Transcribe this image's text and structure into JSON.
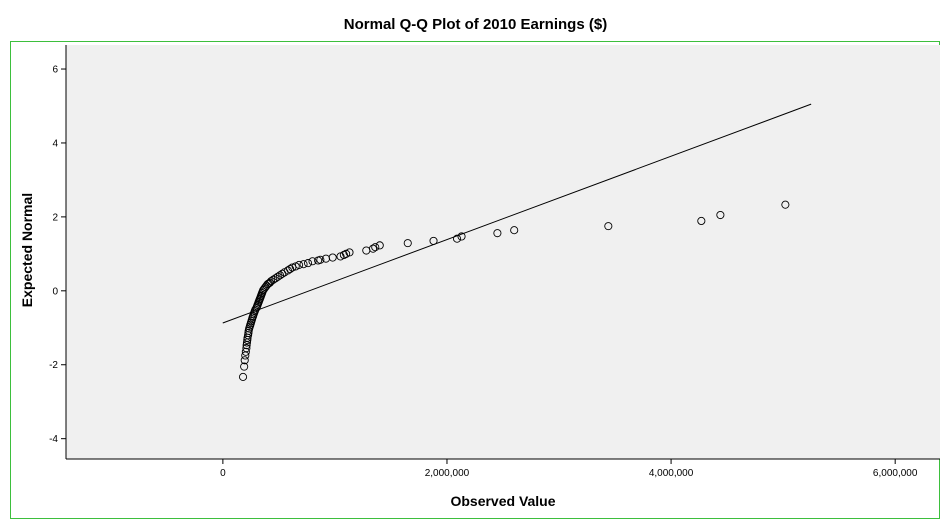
{
  "chart_data": {
    "type": "scatter",
    "title": "Normal Q-Q Plot of 2010 Earnings ($)",
    "xlabel": "Observed Value",
    "ylabel": "Expected Normal",
    "xlim": [
      -1400000,
      6400000
    ],
    "ylim": [
      -4.55,
      6.65
    ],
    "x_ticks": [
      0,
      2000000,
      4000000,
      6000000
    ],
    "x_tick_labels": [
      "0",
      "2,000,000",
      "4,000,000",
      "6,000,000"
    ],
    "y_ticks": [
      -4,
      -2,
      0,
      2,
      4,
      6
    ],
    "y_tick_labels": [
      "-4",
      "-2",
      "0",
      "2",
      "4",
      "6"
    ],
    "grid": false,
    "plot_background": "#f0f0f0",
    "reference_line": {
      "x": [
        -1000,
        5250000
      ],
      "y": [
        -0.87,
        5.05
      ]
    },
    "points": {
      "x": [
        180000,
        190000,
        195000,
        200000,
        205000,
        210000,
        212000,
        215000,
        218000,
        220000,
        225000,
        228000,
        230000,
        235000,
        240000,
        245000,
        250000,
        255000,
        260000,
        265000,
        270000,
        275000,
        280000,
        285000,
        290000,
        300000,
        305000,
        310000,
        315000,
        320000,
        325000,
        330000,
        335000,
        340000,
        345000,
        350000,
        355000,
        360000,
        370000,
        380000,
        390000,
        400000,
        410000,
        420000,
        430000,
        450000,
        470000,
        490000,
        510000,
        530000,
        550000,
        580000,
        600000,
        620000,
        650000,
        680000,
        720000,
        760000,
        800000,
        850000,
        870000,
        920000,
        980000,
        1050000,
        1080000,
        1100000,
        1130000,
        1280000,
        1340000,
        1360000,
        1400000,
        1650000,
        1880000,
        2090000,
        2130000,
        2450000,
        2600000,
        3440000,
        4270000,
        4440000,
        5020000
      ],
      "y": [
        -2.33,
        -2.05,
        -1.88,
        -1.75,
        -1.65,
        -1.55,
        -1.47,
        -1.4,
        -1.33,
        -1.27,
        -1.2,
        -1.14,
        -1.08,
        -1.02,
        -0.97,
        -0.92,
        -0.87,
        -0.82,
        -0.77,
        -0.72,
        -0.68,
        -0.63,
        -0.59,
        -0.55,
        -0.51,
        -0.46,
        -0.42,
        -0.38,
        -0.34,
        -0.3,
        -0.26,
        -0.22,
        -0.18,
        -0.14,
        -0.1,
        -0.06,
        -0.02,
        0.02,
        0.06,
        0.1,
        0.14,
        0.18,
        0.2,
        0.22,
        0.26,
        0.3,
        0.34,
        0.38,
        0.42,
        0.46,
        0.5,
        0.55,
        0.59,
        0.63,
        0.66,
        0.7,
        0.72,
        0.75,
        0.8,
        0.82,
        0.84,
        0.87,
        0.9,
        0.93,
        0.97,
        1.0,
        1.04,
        1.09,
        1.14,
        1.18,
        1.23,
        1.29,
        1.35,
        1.41,
        1.47,
        1.56,
        1.64,
        1.75,
        1.89,
        2.05,
        2.33
      ]
    }
  }
}
